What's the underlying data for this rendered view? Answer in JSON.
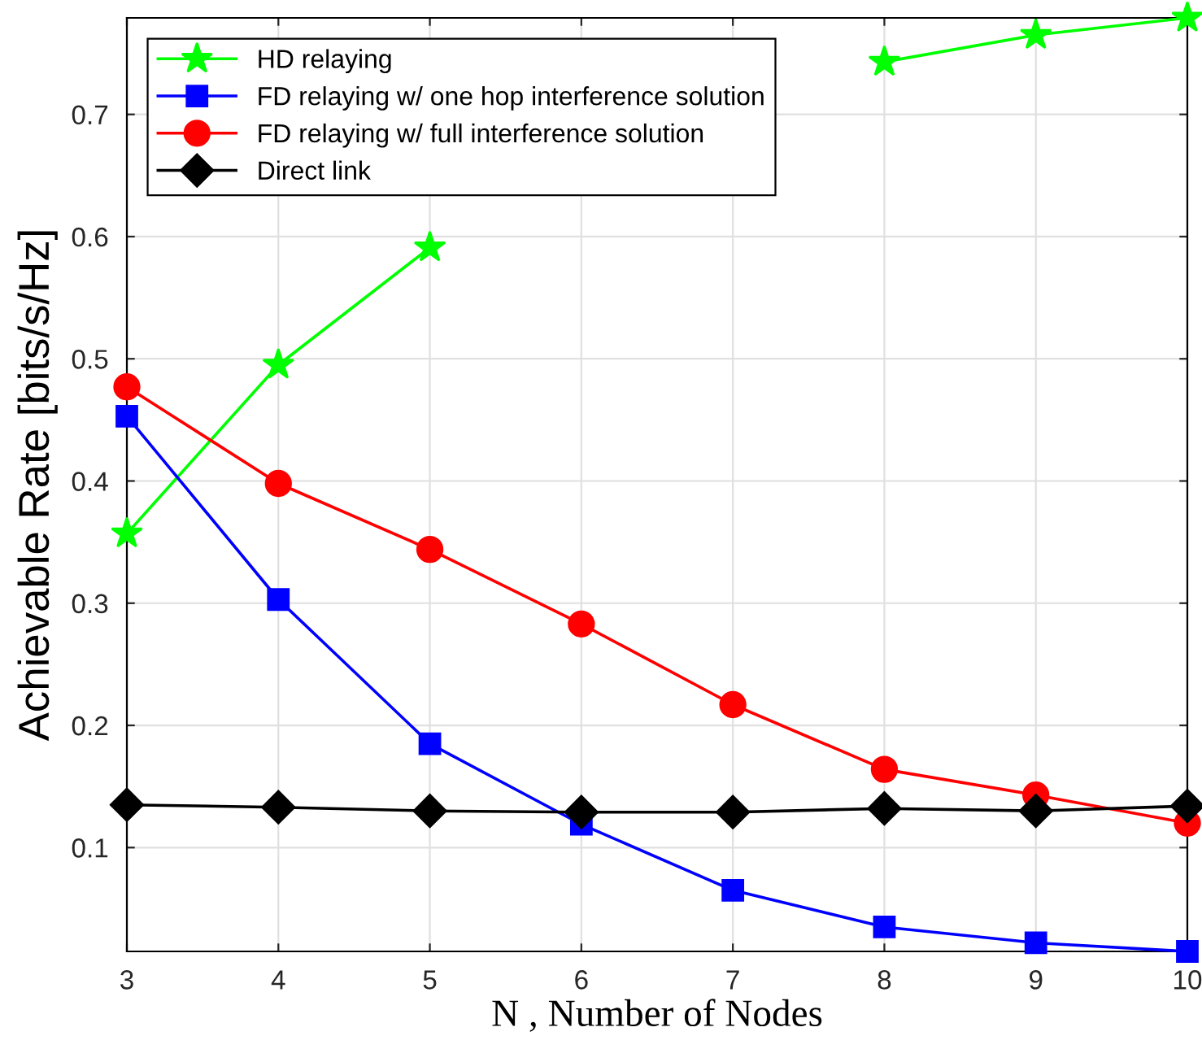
{
  "chart_data": {
    "type": "line",
    "xlabel": "N , Number of Nodes",
    "ylabel": "Achievable Rate [bits/s/Hz]",
    "x": [
      3,
      4,
      5,
      6,
      7,
      8,
      9,
      10
    ],
    "series": [
      {
        "name": "HD relaying",
        "color": "#00ff00",
        "marker": "star",
        "values": [
          0.357,
          0.495,
          0.591,
          null,
          null,
          0.743,
          0.765,
          0.779
        ]
      },
      {
        "name": "FD relaying w/ one hop interference solution",
        "color": "#0000ff",
        "marker": "square",
        "values": [
          0.453,
          0.303,
          0.185,
          0.119,
          0.065,
          0.035,
          0.022,
          0.015
        ]
      },
      {
        "name": "FD relaying w/ full interference solution",
        "color": "#ff0000",
        "marker": "circle",
        "values": [
          0.477,
          0.398,
          0.344,
          0.283,
          0.217,
          0.164,
          0.143,
          0.12
        ]
      },
      {
        "name": "Direct link",
        "color": "#000000",
        "marker": "diamond",
        "values": [
          0.135,
          0.133,
          0.13,
          0.129,
          0.129,
          0.132,
          0.13,
          0.134
        ]
      }
    ],
    "xlim": [
      3,
      10
    ],
    "ylim": [
      0.015,
      0.779
    ],
    "xticks": [
      3,
      4,
      5,
      6,
      7,
      8,
      9,
      10
    ],
    "yticks": [
      0.1,
      0.2,
      0.3,
      0.4,
      0.5,
      0.6,
      0.7
    ],
    "grid": true,
    "legend": "top left",
    "line_style": "solid"
  }
}
